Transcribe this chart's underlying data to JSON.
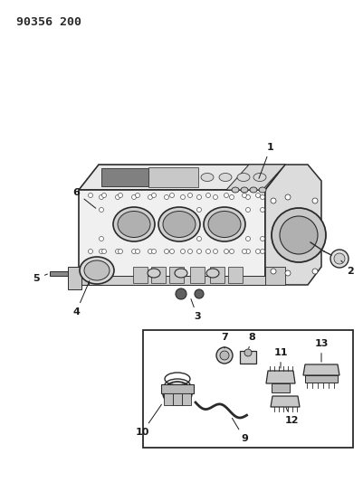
{
  "title": "90356 200",
  "bg_color": "#ffffff",
  "lc": "#2a2a2a",
  "lw": 0.9,
  "fig_w": 4.01,
  "fig_h": 5.33,
  "dpi": 100
}
